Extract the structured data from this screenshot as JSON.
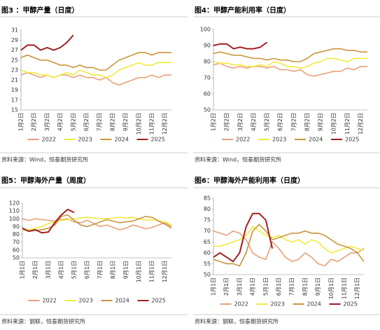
{
  "chart_data": [
    {
      "type": "line",
      "title": "图3 ：甲醇产量（日度）",
      "source": "资料来源：Wind，恒泰期货研究所",
      "categories": [
        "1月2日",
        null,
        "2月2日",
        null,
        "3月2日",
        null,
        "4月2日",
        null,
        "5月2日",
        null,
        "6月2日",
        null,
        "7月2日",
        null,
        "8月2日",
        null,
        "9月2日",
        null,
        "10月2日",
        null,
        "11月2日",
        null,
        "12月2日",
        null
      ],
      "ylim": [
        15,
        31
      ],
      "yticks": [
        15,
        17,
        19,
        21,
        23,
        25,
        27,
        29,
        31
      ],
      "legend": "bottom",
      "series": [
        {
          "name": "2022",
          "color": "#e8a07a",
          "values": [
            22,
            22.5,
            22,
            21.5,
            22,
            21.5,
            22,
            22,
            21.5,
            22,
            21.5,
            21.5,
            21,
            21.5,
            20.5,
            20,
            20.5,
            21,
            21.5,
            21.5,
            22,
            21.5,
            22,
            22
          ]
        },
        {
          "name": "2023",
          "color": "#f2ea3a",
          "values": [
            23,
            22.5,
            22.5,
            22,
            22,
            21.5,
            22,
            22.5,
            22,
            23,
            22.5,
            22,
            22,
            21.5,
            22,
            23,
            23.5,
            24,
            24.5,
            24,
            24,
            24.5,
            24.5,
            24.5
          ]
        },
        {
          "name": "2024",
          "color": "#c9953b",
          "values": [
            25.5,
            26,
            25.5,
            25,
            25,
            24.5,
            24,
            24,
            23.5,
            24,
            23.5,
            23.5,
            23,
            23,
            24,
            25,
            25.5,
            26,
            26.5,
            26.5,
            26,
            26.5,
            26.5,
            26.5
          ]
        },
        {
          "name": "2025",
          "color": "#a31e24",
          "values": [
            27,
            28,
            28,
            27,
            27.5,
            27,
            27.5,
            28.5,
            30,
            null,
            null,
            null,
            null,
            null,
            null,
            null,
            null,
            null,
            null,
            null,
            null,
            null,
            null,
            null
          ]
        }
      ]
    },
    {
      "type": "line",
      "title": "图4：甲醇产能利用率（日度）",
      "source": "资料来源：Wind，恒泰期货研究所",
      "categories": [
        "1月2日",
        null,
        "2月2日",
        null,
        "3月2日",
        null,
        "4月2日",
        null,
        "5月2日",
        null,
        "6月2日",
        null,
        "7月2日",
        null,
        "8月2日",
        null,
        "9月2日",
        null,
        "10月2日",
        null,
        "11月2日",
        null,
        "12月2日",
        null
      ],
      "ylim": [
        50,
        100
      ],
      "yticks": [
        50,
        60,
        70,
        80,
        90,
        100
      ],
      "legend": "bottom",
      "series": [
        {
          "name": "2022",
          "color": "#e8a07a",
          "values": [
            78,
            79,
            77,
            76,
            77,
            76,
            77,
            77,
            76,
            77,
            75,
            75,
            74,
            75,
            72,
            71,
            72,
            73,
            74,
            74,
            76,
            75,
            77,
            77
          ]
        },
        {
          "name": "2023",
          "color": "#f2ea3a",
          "values": [
            80,
            79,
            79,
            78,
            78,
            77,
            77,
            78,
            77,
            80,
            79,
            77,
            77,
            76,
            77,
            79,
            80,
            82,
            82,
            81,
            80,
            82,
            82,
            82
          ]
        },
        {
          "name": "2024",
          "color": "#c9953b",
          "values": [
            85,
            86,
            85,
            84,
            84,
            83,
            82,
            82,
            81,
            82,
            81,
            81,
            80,
            80,
            82,
            85,
            86,
            87,
            88,
            88,
            87,
            87,
            86,
            86
          ]
        },
        {
          "name": "2025",
          "color": "#a31e24",
          "values": [
            90,
            91,
            91,
            88,
            89,
            88,
            88,
            89,
            92,
            null,
            null,
            null,
            null,
            null,
            null,
            null,
            null,
            null,
            null,
            null,
            null,
            null,
            null,
            null
          ]
        }
      ]
    },
    {
      "type": "line",
      "title": "图5：甲醇海外产量（周度）",
      "source": "资料来源：钢联，恒泰期货研究所",
      "categories": [
        "1月1日",
        null,
        "2月1日",
        null,
        "3月1日",
        null,
        "4月1日",
        null,
        "5月1日",
        null,
        "6月1日",
        null,
        "7月1日",
        null,
        "8月1日",
        null,
        "9月1日",
        null,
        "10月1日",
        null,
        "11月1日",
        null,
        "12月1日",
        null
      ],
      "ylim": [
        50,
        120
      ],
      "yticks": [
        50,
        60,
        70,
        80,
        90,
        100,
        110,
        120
      ],
      "legend": "bottom",
      "series": [
        {
          "name": "2022",
          "color": "#e8a07a",
          "values": [
            100,
            98,
            100,
            99,
            98,
            97,
            99,
            100,
            96,
            95,
            98,
            94,
            90,
            92,
            89,
            86,
            88,
            92,
            90,
            87,
            89,
            92,
            95,
            90
          ]
        },
        {
          "name": "2023",
          "color": "#f2ea3a",
          "values": [
            85,
            86,
            88,
            90,
            94,
            96,
            98,
            99,
            100,
            101,
            102,
            101,
            100,
            100,
            101,
            102,
            101,
            102,
            100,
            98,
            99,
            97,
            96,
            92
          ]
        },
        {
          "name": "2024",
          "color": "#c9953b",
          "values": [
            87,
            84,
            85,
            86,
            88,
            92,
            103,
            105,
            98,
            92,
            90,
            93,
            96,
            99,
            97,
            95,
            96,
            97,
            100,
            103,
            102,
            97,
            93,
            88
          ]
        },
        {
          "name": "2025",
          "color": "#a31e24",
          "values": [
            88,
            84,
            86,
            82,
            83,
            95,
            105,
            112,
            108,
            null,
            null,
            null,
            null,
            null,
            null,
            null,
            null,
            null,
            null,
            null,
            null,
            null,
            null,
            null
          ]
        }
      ]
    },
    {
      "type": "line",
      "title": "图6：甲醇海外产能利用率（日度）",
      "source": "资料来源：钢联，恒泰期货研究所",
      "categories": [
        "1月1日",
        null,
        "2月1日",
        null,
        "3月1日",
        null,
        "4月1日",
        null,
        "5月1日",
        null,
        "6月1日",
        null,
        "7月1日",
        null,
        "8月1日",
        null,
        "9月1日",
        null,
        "10月1日",
        null,
        "11月1日",
        null,
        "12月1日",
        null
      ],
      "ylim": [
        50,
        85
      ],
      "yticks": [
        50,
        55,
        60,
        65,
        70,
        75,
        80,
        85
      ],
      "legend": "bottom",
      "series": [
        {
          "name": "2022",
          "color": "#e8a07a",
          "values": [
            70,
            69,
            68,
            70,
            69,
            66,
            60,
            58,
            57,
            65,
            62,
            58,
            56,
            57,
            60,
            58,
            55,
            54,
            57,
            56,
            58,
            60,
            60,
            62
          ]
        },
        {
          "name": "2023",
          "color": "#f2ea3a",
          "values": [
            63,
            63,
            64,
            65,
            66,
            68,
            72,
            70,
            68,
            67,
            68,
            66,
            65,
            66,
            64,
            66,
            65,
            62,
            60,
            61,
            62,
            63,
            62,
            61
          ]
        },
        {
          "name": "2024",
          "color": "#c9953b",
          "values": [
            57,
            56,
            55,
            55,
            54,
            60,
            70,
            73,
            70,
            66,
            67,
            68,
            69,
            69,
            70,
            69,
            69,
            68,
            66,
            64,
            63,
            62,
            60,
            56
          ]
        },
        {
          "name": "2025",
          "color": "#a31e24",
          "values": [
            58,
            60,
            58,
            56,
            60,
            72,
            78,
            78,
            75,
            62,
            null,
            null,
            null,
            null,
            null,
            null,
            null,
            null,
            null,
            null,
            null,
            null,
            null,
            null
          ]
        }
      ]
    }
  ]
}
